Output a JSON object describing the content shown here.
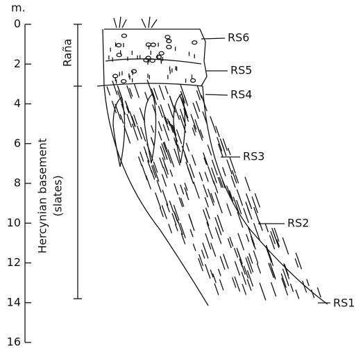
{
  "depth_axis": {
    "unit": "m.",
    "ticks": [
      0,
      2,
      4,
      6,
      8,
      10,
      12,
      14,
      16
    ]
  },
  "units": [
    {
      "label": "Raña"
    },
    {
      "label_lines": [
        "Hercynian basement",
        "(slates)"
      ]
    }
  ],
  "samples": [
    "RS6",
    "RS5",
    "RS4",
    "RS3",
    "RS2",
    "RS1"
  ]
}
